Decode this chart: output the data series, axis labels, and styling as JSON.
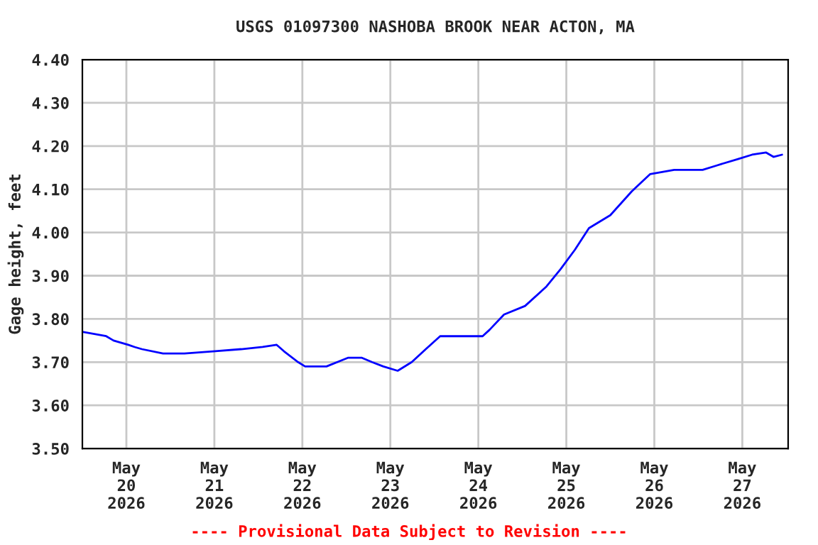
{
  "chart_data": {
    "type": "line",
    "title": "USGS 01097300 NASHOBA BROOK NEAR ACTON, MA",
    "ylabel": "Gage height, feet",
    "annotations": [
      "---- Provisional Data Subject to Revision ----"
    ],
    "x": [
      "2026-05-19T12:00",
      "2026-05-19T18:30",
      "2026-05-19T20:30",
      "2026-05-20T00:30",
      "2026-05-20T02:15",
      "2026-05-20T04:15",
      "2026-05-20T10:00",
      "2026-05-20T15:50",
      "2026-05-20T23:40",
      "2026-05-21T07:20",
      "2026-05-21T13:10",
      "2026-05-21T17:00",
      "2026-05-21T19:00",
      "2026-05-21T22:50",
      "2026-05-22T00:45",
      "2026-05-22T06:35",
      "2026-05-22T12:25",
      "2026-05-22T16:15",
      "2026-05-22T19:00",
      "2026-05-22T22:05",
      "2026-05-23T02:00",
      "2026-05-23T05:50",
      "2026-05-23T09:40",
      "2026-05-23T13:35",
      "2026-05-23T17:25",
      "2026-05-24T01:10",
      "2026-05-24T03:05",
      "2026-05-24T07:00",
      "2026-05-24T12:45",
      "2026-05-24T18:35",
      "2026-05-24T22:25",
      "2026-05-25T02:20",
      "2026-05-25T06:10",
      "2026-05-25T12:00",
      "2026-05-25T17:50",
      "2026-05-25T22:50",
      "2026-05-26T05:25",
      "2026-05-26T13:10",
      "2026-05-26T17:00",
      "2026-05-26T22:50",
      "2026-05-27T02:40",
      "2026-05-27T06:30",
      "2026-05-27T08:30",
      "2026-05-27T10:50"
    ],
    "series": [
      {
        "color": "#0000ff",
        "values": [
          3.77,
          3.76,
          3.75,
          3.74,
          3.735,
          3.73,
          3.72,
          3.72,
          3.725,
          3.73,
          3.735,
          3.74,
          3.725,
          3.7,
          3.69,
          3.69,
          3.71,
          3.71,
          3.7,
          3.69,
          3.68,
          3.7,
          3.73,
          3.76,
          3.76,
          3.76,
          3.775,
          3.81,
          3.83,
          3.875,
          3.915,
          3.96,
          4.01,
          4.04,
          4.095,
          4.135,
          4.145,
          4.145,
          4.155,
          4.17,
          4.18,
          4.185,
          4.175,
          4.18
        ]
      }
    ],
    "xlim": [
      "2026-05-19T12:00",
      "2026-05-27T12:30"
    ],
    "xticks": [
      {
        "value": "2026-05-20",
        "label": "May\n20\n2026"
      },
      {
        "value": "2026-05-21",
        "label": "May\n21\n2026"
      },
      {
        "value": "2026-05-22",
        "label": "May\n22\n2026"
      },
      {
        "value": "2026-05-23",
        "label": "May\n23\n2026"
      },
      {
        "value": "2026-05-24",
        "label": "May\n24\n2026"
      },
      {
        "value": "2026-05-25",
        "label": "May\n25\n2026"
      },
      {
        "value": "2026-05-26",
        "label": "May\n26\n2026"
      },
      {
        "value": "2026-05-27",
        "label": "May\n27\n2026"
      }
    ],
    "ylim": [
      3.5,
      4.4
    ],
    "yticks": [
      {
        "value": 3.5,
        "label": "3.50"
      },
      {
        "value": 3.6,
        "label": "3.60"
      },
      {
        "value": 3.7,
        "label": "3.70"
      },
      {
        "value": 3.8,
        "label": "3.80"
      },
      {
        "value": 3.9,
        "label": "3.90"
      },
      {
        "value": 4.0,
        "label": "4.00"
      },
      {
        "value": 4.1,
        "label": "4.10"
      },
      {
        "value": 4.2,
        "label": "4.20"
      },
      {
        "value": 4.3,
        "label": "4.30"
      },
      {
        "value": 4.4,
        "label": "4.40"
      }
    ],
    "grid": true,
    "legend": false
  }
}
